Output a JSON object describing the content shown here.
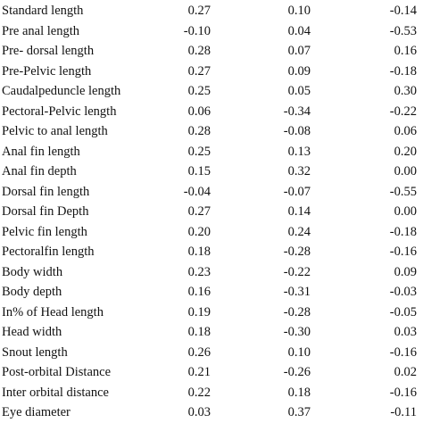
{
  "table": {
    "rows": [
      [
        "Standard length",
        "0.27",
        "0.10",
        "-0.14"
      ],
      [
        "Pre anal length",
        "-0.10",
        "0.04",
        "-0.53"
      ],
      [
        "Pre- dorsal length",
        "0.28",
        "0.07",
        "0.16"
      ],
      [
        "Pre-Pelvic length",
        "0.27",
        "0.09",
        "-0.18"
      ],
      [
        "Caudalpeduncle length",
        "0.25",
        "0.05",
        "0.30"
      ],
      [
        "Pectoral-Pelvic length",
        "0.06",
        "-0.34",
        "-0.22"
      ],
      [
        "Pelvic to anal length",
        "0.28",
        "-0.08",
        "0.06"
      ],
      [
        "Anal fin length",
        "0.25",
        "0.13",
        "0.20"
      ],
      [
        "Anal fin depth",
        "0.15",
        "0.32",
        "0.00"
      ],
      [
        "Dorsal fin length",
        "-0.04",
        "-0.07",
        "-0.55"
      ],
      [
        "Dorsal fin Depth",
        "0.27",
        "0.14",
        "0.00"
      ],
      [
        "Pelvic fin length",
        "0.20",
        "0.24",
        "-0.18"
      ],
      [
        "Pectoralfin length",
        "0.18",
        "-0.28",
        "-0.16"
      ],
      [
        "Body width",
        "0.23",
        "-0.22",
        "0.09"
      ],
      [
        "Body depth",
        "0.16",
        "-0.31",
        "-0.03"
      ],
      [
        "In% of Head length",
        "0.19",
        "-0.28",
        "-0.05"
      ],
      [
        "Head width",
        "0.18",
        "-0.30",
        "0.03"
      ],
      [
        "Snout length",
        "0.26",
        "0.10",
        "-0.16"
      ],
      [
        "Post-orbital Distance",
        "0.21",
        "-0.26",
        "0.02"
      ],
      [
        "Inter orbital distance",
        "0.22",
        "0.18",
        "-0.16"
      ],
      [
        "Eye diameter",
        "0.03",
        "0.37",
        "-0.11"
      ]
    ]
  }
}
